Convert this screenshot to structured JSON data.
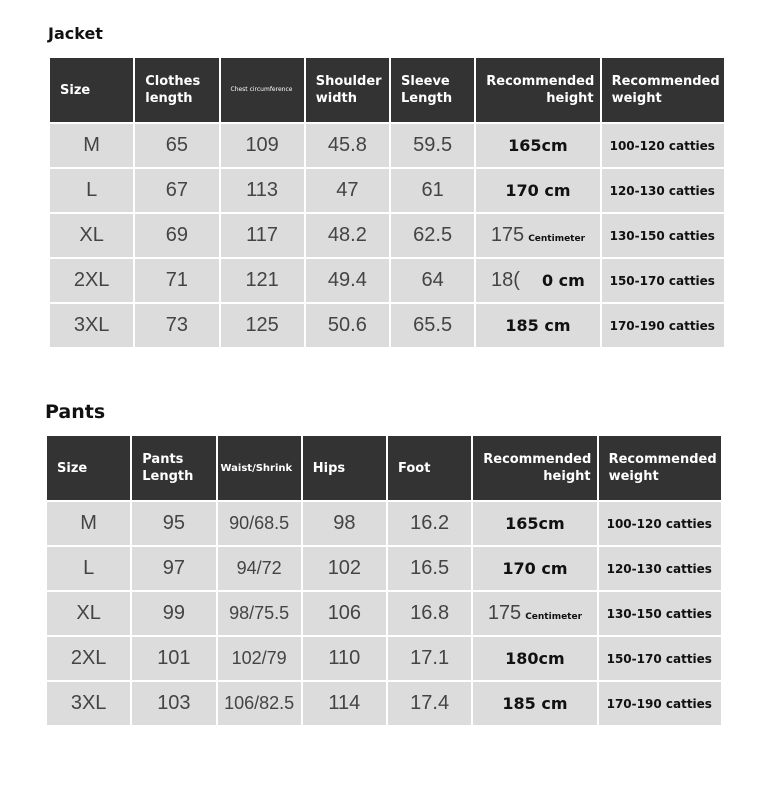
{
  "jacket": {
    "title": "Jacket",
    "headers": [
      "Size",
      "Clothes length",
      "Chest circumference",
      "Shoulder width",
      "Sleeve Length",
      "Recommended height",
      "Recommended weight"
    ],
    "rows": [
      [
        "M",
        "65",
        "109",
        "45.8",
        "59.5",
        {
          "main": "165cm",
          "suffix": ""
        },
        "100-120 catties"
      ],
      [
        "L",
        "67",
        "113",
        "47",
        "61",
        {
          "main": "170 cm",
          "suffix": ""
        },
        "120-130 catties"
      ],
      [
        "XL",
        "69",
        "117",
        "48.2",
        "62.5",
        {
          "light": "175",
          "suffix": "Centimeter"
        },
        "130-150 catties"
      ],
      [
        "2XL",
        "71",
        "121",
        "49.4",
        "64",
        {
          "light": "18(",
          "suffix": "0 cm"
        },
        "150-170 catties"
      ],
      [
        "3XL",
        "73",
        "125",
        "50.6",
        "65.5",
        {
          "main": "185 cm",
          "suffix": ""
        },
        "170-190 catties"
      ]
    ]
  },
  "pants": {
    "title": "Pants",
    "headers": [
      "Size",
      "Pants Length",
      "Waist/Shrink",
      "Hips",
      "Foot",
      "Recommended height",
      "Recommended weight"
    ],
    "rows": [
      [
        "M",
        "95",
        "90/68.5",
        "98",
        "16.2",
        {
          "main": "165cm",
          "suffix": ""
        },
        "100-120 catties"
      ],
      [
        "L",
        "97",
        "94/72",
        "102",
        "16.5",
        {
          "main": "170 cm",
          "suffix": ""
        },
        "120-130 catties"
      ],
      [
        "XL",
        "99",
        "98/75.5",
        "106",
        "16.8",
        {
          "light": "175",
          "suffix": "Centimeter"
        },
        "130-150 catties"
      ],
      [
        "2XL",
        "101",
        "102/79",
        "110",
        "17.1",
        {
          "main": "180cm",
          "suffix": ""
        },
        "150-170 catties"
      ],
      [
        "3XL",
        "103",
        "106/82.5",
        "114",
        "17.4",
        {
          "main": "185 cm",
          "suffix": ""
        },
        "170-190 catties"
      ]
    ]
  }
}
